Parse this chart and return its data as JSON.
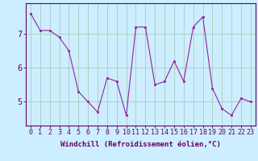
{
  "x": [
    0,
    1,
    2,
    3,
    4,
    5,
    6,
    7,
    8,
    9,
    10,
    11,
    12,
    13,
    14,
    15,
    16,
    17,
    18,
    19,
    20,
    21,
    22,
    23
  ],
  "y": [
    7.6,
    7.1,
    7.1,
    6.9,
    6.5,
    5.3,
    5.0,
    4.7,
    5.7,
    5.6,
    4.6,
    7.2,
    7.2,
    5.5,
    5.6,
    6.2,
    5.6,
    7.2,
    7.5,
    5.4,
    4.8,
    4.6,
    5.1,
    5.0
  ],
  "line_color": "#992299",
  "marker_color": "#992299",
  "bg_color": "#cceeff",
  "grid_color": "#aaccbb",
  "axis_color": "#660066",
  "xlabel": "Windchill (Refroidissement éolien,°C)",
  "xlim": [
    -0.5,
    23.5
  ],
  "ylim": [
    4.3,
    7.9
  ],
  "yticks": [
    5,
    6,
    7
  ],
  "xticks": [
    0,
    1,
    2,
    3,
    4,
    5,
    6,
    7,
    8,
    9,
    10,
    11,
    12,
    13,
    14,
    15,
    16,
    17,
    18,
    19,
    20,
    21,
    22,
    23
  ],
  "xlabel_fontsize": 6.5,
  "tick_fontsize": 6.0
}
